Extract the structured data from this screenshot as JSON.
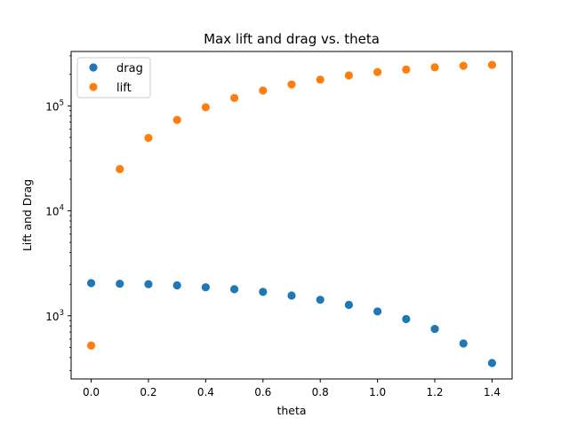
{
  "chart_data": {
    "type": "scatter",
    "title": "Max lift and drag vs. theta",
    "xlabel": "theta",
    "ylabel": "Lift and Drag",
    "xlim": [
      -0.07,
      1.47
    ],
    "ylim": [
      250,
      330000
    ],
    "yscale": "log",
    "xticks": [
      {
        "value": 0.0,
        "label": "0.0"
      },
      {
        "value": 0.2,
        "label": "0.2"
      },
      {
        "value": 0.4,
        "label": "0.4"
      },
      {
        "value": 0.6,
        "label": "0.6"
      },
      {
        "value": 0.8,
        "label": "0.8"
      },
      {
        "value": 1.0,
        "label": "1.0"
      },
      {
        "value": 1.2,
        "label": "1.2"
      },
      {
        "value": 1.4,
        "label": "1.4"
      }
    ],
    "yticks": [
      {
        "value": 1000,
        "base": "10",
        "exp": "3"
      },
      {
        "value": 10000,
        "base": "10",
        "exp": "4"
      },
      {
        "value": 100000,
        "base": "10",
        "exp": "5"
      }
    ],
    "grid": false,
    "legend_position": "top-left",
    "series": [
      {
        "name": "drag",
        "color": "#1f77b4",
        "x": [
          0.0,
          0.1,
          0.2,
          0.3,
          0.4,
          0.5,
          0.6,
          0.7,
          0.8,
          0.9,
          1.0,
          1.1,
          1.2,
          1.3,
          1.4
        ],
        "y": [
          2050,
          2020,
          2000,
          1950,
          1870,
          1790,
          1690,
          1560,
          1420,
          1270,
          1100,
          930,
          750,
          545,
          355
        ]
      },
      {
        "name": "lift",
        "color": "#ff7f0e",
        "x": [
          0.0,
          0.1,
          0.2,
          0.3,
          0.4,
          0.5,
          0.6,
          0.7,
          0.8,
          0.9,
          1.0,
          1.1,
          1.2,
          1.3,
          1.4
        ],
        "y": [
          520,
          25000,
          49500,
          73500,
          97000,
          119000,
          140000,
          160000,
          178000,
          195000,
          210000,
          222000,
          233000,
          241000,
          246000
        ]
      }
    ]
  }
}
